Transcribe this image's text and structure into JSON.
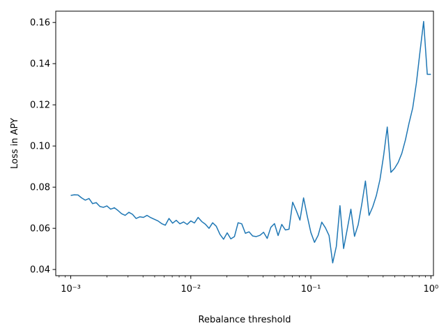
{
  "chart_data": {
    "type": "line",
    "xlabel": "Rebalance threshold",
    "ylabel": "Loss in APY",
    "x_scale": "log",
    "xlim": [
      0.00075,
      1.05
    ],
    "ylim": [
      0.037,
      0.1655
    ],
    "grid": false,
    "x_ticks": [
      {
        "value": 0.001,
        "label": "10⁻³"
      },
      {
        "value": 0.01,
        "label": "10⁻²"
      },
      {
        "value": 0.1,
        "label": "10⁻¹"
      },
      {
        "value": 1,
        "label": "10⁰"
      }
    ],
    "y_ticks": [
      {
        "value": 0.04,
        "label": "0.04"
      },
      {
        "value": 0.06,
        "label": "0.06"
      },
      {
        "value": 0.08,
        "label": "0.08"
      },
      {
        "value": 0.1,
        "label": "0.10"
      },
      {
        "value": 0.12,
        "label": "0.12"
      },
      {
        "value": 0.14,
        "label": "0.14"
      },
      {
        "value": 0.16,
        "label": "0.16"
      }
    ],
    "series": [
      {
        "color": "#1f77b4",
        "points": [
          [
            0.001,
            0.076
          ],
          [
            0.00107,
            0.0763
          ],
          [
            0.00115,
            0.0762
          ],
          [
            0.00123,
            0.0748
          ],
          [
            0.00132,
            0.0737
          ],
          [
            0.00142,
            0.0745
          ],
          [
            0.00152,
            0.072
          ],
          [
            0.00163,
            0.0725
          ],
          [
            0.00175,
            0.0706
          ],
          [
            0.00187,
            0.0702
          ],
          [
            0.002,
            0.0709
          ],
          [
            0.00215,
            0.0693
          ],
          [
            0.00231,
            0.07
          ],
          [
            0.00247,
            0.0687
          ],
          [
            0.00265,
            0.0671
          ],
          [
            0.00284,
            0.0663
          ],
          [
            0.00305,
            0.0678
          ],
          [
            0.00327,
            0.0668
          ],
          [
            0.0035,
            0.0648
          ],
          [
            0.00376,
            0.0656
          ],
          [
            0.00403,
            0.0653
          ],
          [
            0.00432,
            0.0663
          ],
          [
            0.00464,
            0.0652
          ],
          [
            0.00497,
            0.0644
          ],
          [
            0.00533,
            0.0636
          ],
          [
            0.00572,
            0.0623
          ],
          [
            0.00613,
            0.0615
          ],
          [
            0.00658,
            0.0648
          ],
          [
            0.00705,
            0.0625
          ],
          [
            0.00756,
            0.0639
          ],
          [
            0.00811,
            0.0622
          ],
          [
            0.0087,
            0.0631
          ],
          [
            0.00933,
            0.0619
          ],
          [
            0.01,
            0.0636
          ],
          [
            0.01072,
            0.0626
          ],
          [
            0.0115,
            0.0653
          ],
          [
            0.01233,
            0.0633
          ],
          [
            0.01322,
            0.062
          ],
          [
            0.01418,
            0.06
          ],
          [
            0.0152,
            0.0627
          ],
          [
            0.0163,
            0.061
          ],
          [
            0.01748,
            0.0571
          ],
          [
            0.01874,
            0.0547
          ],
          [
            0.0201,
            0.0578
          ],
          [
            0.02154,
            0.0549
          ],
          [
            0.0231,
            0.056
          ],
          [
            0.02477,
            0.0627
          ],
          [
            0.02656,
            0.0622
          ],
          [
            0.02848,
            0.0576
          ],
          [
            0.03054,
            0.0583
          ],
          [
            0.03275,
            0.0563
          ],
          [
            0.03511,
            0.056
          ],
          [
            0.03765,
            0.0566
          ],
          [
            0.04037,
            0.0581
          ],
          [
            0.04329,
            0.0551
          ],
          [
            0.04642,
            0.0605
          ],
          [
            0.04977,
            0.0623
          ],
          [
            0.05337,
            0.0565
          ],
          [
            0.05722,
            0.0619
          ],
          [
            0.06136,
            0.0592
          ],
          [
            0.06579,
            0.0596
          ],
          [
            0.07055,
            0.0727
          ],
          [
            0.07565,
            0.0686
          ],
          [
            0.08111,
            0.064
          ],
          [
            0.08697,
            0.0748
          ],
          [
            0.09326,
            0.066
          ],
          [
            0.1,
            0.058
          ],
          [
            0.10723,
            0.0532
          ],
          [
            0.11498,
            0.0566
          ],
          [
            0.12328,
            0.063
          ],
          [
            0.13219,
            0.0603
          ],
          [
            0.14175,
            0.0565
          ],
          [
            0.15199,
            0.0432
          ],
          [
            0.16298,
            0.0512
          ],
          [
            0.17475,
            0.071
          ],
          [
            0.18738,
            0.0502
          ],
          [
            0.20092,
            0.0596
          ],
          [
            0.21544,
            0.0693
          ],
          [
            0.23101,
            0.0561
          ],
          [
            0.24771,
            0.0617
          ],
          [
            0.26561,
            0.0717
          ],
          [
            0.2848,
            0.083
          ],
          [
            0.30539,
            0.0663
          ],
          [
            0.32745,
            0.0704
          ],
          [
            0.35112,
            0.0759
          ],
          [
            0.37649,
            0.0837
          ],
          [
            0.4037,
            0.0953
          ],
          [
            0.43288,
            0.1092
          ],
          [
            0.46416,
            0.0872
          ],
          [
            0.4977,
            0.0891
          ],
          [
            0.53367,
            0.092
          ],
          [
            0.57224,
            0.0964
          ],
          [
            0.61359,
            0.103
          ],
          [
            0.65793,
            0.1112
          ],
          [
            0.70548,
            0.1185
          ],
          [
            0.75646,
            0.1305
          ],
          [
            0.81113,
            0.1458
          ],
          [
            0.86975,
            0.1605
          ],
          [
            0.9326,
            0.1348
          ],
          [
            1.0,
            0.1348
          ]
        ]
      }
    ]
  }
}
